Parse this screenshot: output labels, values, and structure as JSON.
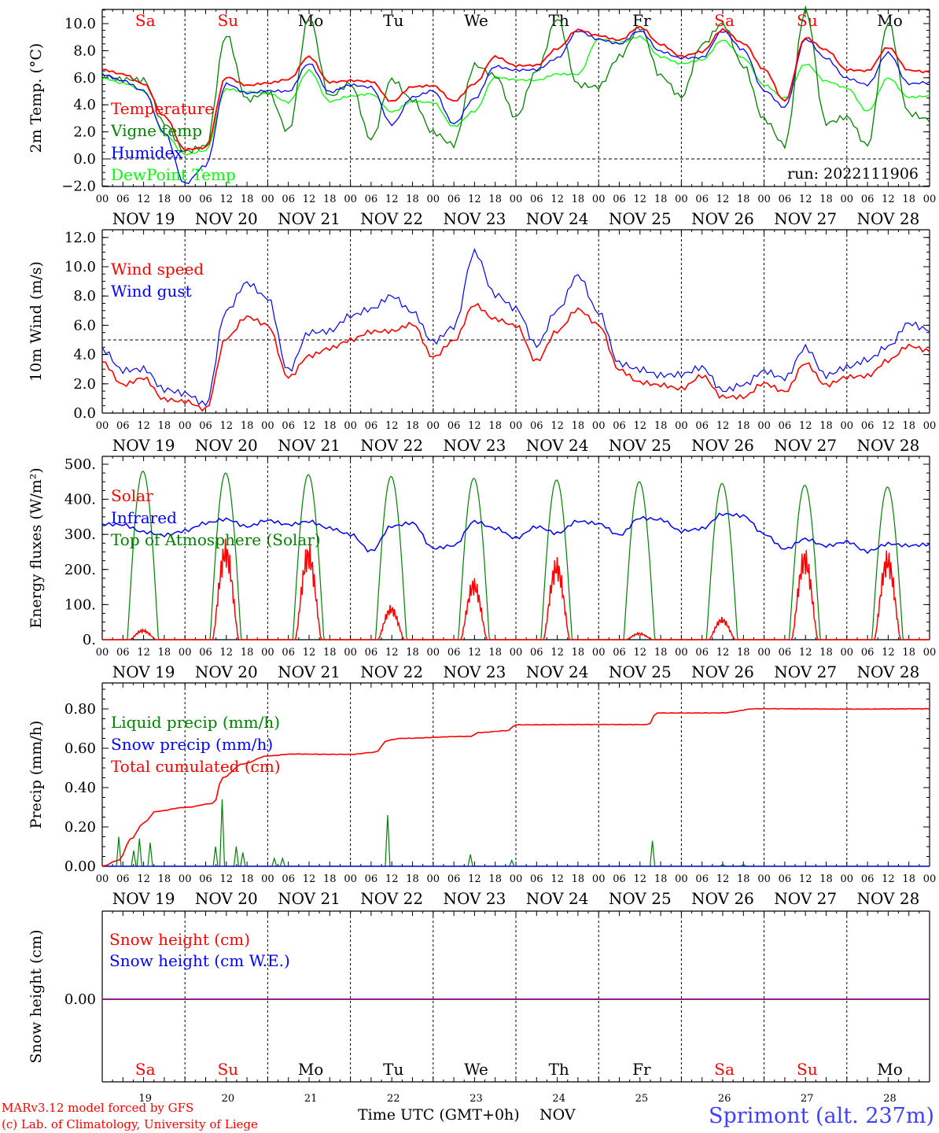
{
  "meta": {
    "run_label": "run: 2022111906",
    "footer_model": "MARv3.12 model forced by GFS",
    "footer_lab": "(c) Lab. of Climatology, University of Liege",
    "footer_axis": "Time UTC (GMT+0h)",
    "footer_month": "NOV",
    "station": "Sprimont (alt. 237m)"
  },
  "colors": {
    "red": "#ff0000",
    "green": "#008000",
    "blue": "#0000ff",
    "light_green": "#00ff00",
    "purple": "#800080",
    "station": "#4040ff"
  },
  "time_axis": {
    "hour_labels": [
      "00",
      "06",
      "12",
      "18"
    ],
    "final_hour_label": "00",
    "date_labels": [
      "NOV 19",
      "NOV 20",
      "NOV 21",
      "NOV 22",
      "NOV 23",
      "NOV 24",
      "NOV 25",
      "NOV 26",
      "NOV 27",
      "NOV 28"
    ],
    "day_names": [
      "Sa",
      "Su",
      "Mo",
      "Tu",
      "We",
      "Th",
      "Fr",
      "Sa",
      "Su",
      "Mo"
    ],
    "day_name_colors": [
      "red",
      "red",
      "black",
      "black",
      "black",
      "black",
      "black",
      "red",
      "red",
      "black"
    ],
    "day_numbers": [
      "19",
      "20",
      "21",
      "22",
      "23",
      "24",
      "25",
      "26",
      "27",
      "28"
    ]
  },
  "chart_data": [
    {
      "type": "line",
      "ylabel": "2m Temp. (°C)",
      "ylim": [
        -2,
        11
      ],
      "yticks": [
        -2,
        0,
        2,
        4,
        6,
        8,
        10
      ],
      "ytick_labels": [
        "−2.0",
        "0.0",
        "2.0",
        "4.0",
        "6.0",
        "8.0",
        "10.0"
      ],
      "ref_line": 0,
      "x_days": [
        0,
        0.25,
        0.5,
        0.75,
        1,
        1.25,
        1.5,
        1.75,
        2,
        2.25,
        2.5,
        2.75,
        3,
        3.25,
        3.5,
        3.75,
        4,
        4.25,
        4.5,
        4.75,
        5,
        5.25,
        5.5,
        5.75,
        6,
        6.25,
        6.5,
        6.75,
        7,
        7.25,
        7.5,
        7.75,
        8,
        8.25,
        8.5,
        8.75,
        9,
        9.25,
        9.5,
        9.75,
        10
      ],
      "series": [
        {
          "name": "Temperature",
          "color": "red",
          "values": [
            6.6,
            6.3,
            5.6,
            3.2,
            0.7,
            0.8,
            6.0,
            5.4,
            5.6,
            5.9,
            7.6,
            5.7,
            5.8,
            5.7,
            4.2,
            5.3,
            5.4,
            4.3,
            5.6,
            7.6,
            6.9,
            6.9,
            8.1,
            9.5,
            9.1,
            8.8,
            9.8,
            8.5,
            7.6,
            7.9,
            9.5,
            8.5,
            6.6,
            4.3,
            9.0,
            8.1,
            6.6,
            6.5,
            8.2,
            6.5,
            6.4
          ]
        },
        {
          "name": "Vigne temp",
          "color": "green",
          "values": [
            6.2,
            5.8,
            5.7,
            2.5,
            0.5,
            1.0,
            9.3,
            4.5,
            5.0,
            2.0,
            10.3,
            4.5,
            5.5,
            1.5,
            6.0,
            4.5,
            2.0,
            1.0,
            6.8,
            6.0,
            3.0,
            6.5,
            10.5,
            5.6,
            5.4,
            7.5,
            9.6,
            6.0,
            4.5,
            8.5,
            10.1,
            7.0,
            3.0,
            1.0,
            10.9,
            2.5,
            3.0,
            1.0,
            10.2,
            3.5,
            3.0
          ]
        },
        {
          "name": "Humidex",
          "color": "blue",
          "values": [
            6.2,
            5.8,
            5.1,
            2.0,
            -1.8,
            -0.5,
            5.5,
            4.8,
            5.0,
            5.0,
            7.1,
            5.0,
            5.5,
            5.3,
            2.5,
            4.5,
            5.0,
            2.6,
            4.5,
            6.9,
            6.6,
            6.6,
            7.4,
            9.4,
            8.8,
            8.5,
            9.5,
            8.0,
            7.5,
            7.5,
            9.4,
            8.0,
            5.0,
            3.8,
            8.9,
            7.5,
            6.0,
            5.5,
            7.8,
            5.5,
            5.6
          ]
        },
        {
          "name": "DewPoint Temp",
          "color": "light_green",
          "values": [
            6.0,
            5.6,
            5.0,
            1.8,
            0.3,
            0.6,
            5.2,
            5.0,
            4.9,
            4.2,
            6.5,
            4.2,
            4.6,
            4.8,
            3.5,
            4.3,
            4.2,
            2.4,
            3.5,
            6.0,
            5.8,
            5.8,
            6.3,
            6.3,
            8.9,
            8.6,
            9.0,
            7.5,
            7.0,
            7.3,
            8.8,
            7.5,
            5.5,
            4.5,
            7.0,
            5.7,
            5.2,
            3.5,
            6.0,
            4.6,
            4.7
          ]
        }
      ]
    },
    {
      "type": "line",
      "ylabel": "10m Wind (m/s)",
      "ylim": [
        0,
        12
      ],
      "yticks": [
        0,
        2,
        4,
        6,
        8,
        10,
        12
      ],
      "ytick_labels": [
        "0.0",
        "2.0",
        "4.0",
        "6.0",
        "8.0",
        "10.0",
        "12.0"
      ],
      "ref_line": 5,
      "x_days": [
        0,
        0.25,
        0.5,
        0.75,
        1,
        1.25,
        1.5,
        1.75,
        2,
        2.25,
        2.5,
        2.75,
        3,
        3.25,
        3.5,
        3.75,
        4,
        4.25,
        4.5,
        4.75,
        5,
        5.25,
        5.5,
        5.75,
        6,
        6.25,
        6.5,
        6.75,
        7,
        7.25,
        7.5,
        7.75,
        8,
        8.25,
        8.5,
        8.75,
        9,
        9.25,
        9.5,
        9.75,
        10
      ],
      "series": [
        {
          "name": "Wind speed",
          "color": "red",
          "values": [
            3.5,
            2.0,
            2.5,
            1.0,
            0.8,
            0.2,
            5.0,
            6.5,
            6.0,
            2.5,
            4.0,
            4.5,
            5.0,
            5.5,
            5.5,
            6.0,
            3.8,
            5.0,
            7.5,
            6.5,
            6.0,
            3.5,
            5.5,
            7.0,
            6.0,
            3.0,
            2.2,
            2.0,
            1.7,
            2.5,
            1.0,
            1.0,
            2.0,
            1.5,
            3.5,
            2.0,
            2.5,
            2.5,
            3.5,
            4.5,
            4.2
          ]
        },
        {
          "name": "Wind gust",
          "color": "blue",
          "values": [
            4.5,
            3.0,
            3.0,
            1.5,
            1.2,
            0.5,
            7.0,
            9.0,
            8.0,
            3.0,
            5.5,
            5.5,
            6.5,
            7.0,
            8.0,
            7.0,
            5.0,
            6.0,
            11.0,
            8.0,
            7.0,
            4.5,
            7.0,
            9.5,
            7.0,
            3.5,
            3.0,
            2.5,
            2.5,
            3.0,
            1.5,
            2.0,
            3.0,
            2.5,
            4.5,
            2.5,
            3.0,
            3.5,
            4.5,
            6.2,
            5.8
          ]
        }
      ]
    },
    {
      "type": "line",
      "ylabel": "Energy fluxes (W/m²)",
      "ylim": [
        0,
        500
      ],
      "yticks": [
        0,
        100,
        200,
        300,
        400,
        500
      ],
      "ytick_labels": [
        "0.",
        "100.",
        "200.",
        "300.",
        "400.",
        "500."
      ],
      "day_shapes": true,
      "series": [
        {
          "name": "Solar",
          "color": "red",
          "daily_peak": [
            30,
            290,
            280,
            100,
            180,
            240,
            20,
            65,
            265,
            260
          ]
        },
        {
          "name": "Infrared",
          "color": "blue",
          "x_days": [
            0,
            0.25,
            0.5,
            0.75,
            1,
            1.25,
            1.5,
            1.75,
            2,
            2.25,
            2.5,
            2.75,
            3,
            3.25,
            3.5,
            3.75,
            4,
            4.25,
            4.5,
            4.75,
            5,
            5.25,
            5.5,
            5.75,
            6,
            6.25,
            6.5,
            6.75,
            7,
            7.25,
            7.5,
            7.75,
            8,
            8.25,
            8.5,
            8.75,
            9,
            9.25,
            9.5,
            9.75,
            10
          ],
          "values": [
            330,
            330,
            310,
            300,
            310,
            330,
            340,
            320,
            340,
            330,
            340,
            320,
            300,
            250,
            320,
            330,
            260,
            270,
            340,
            320,
            290,
            320,
            300,
            335,
            330,
            300,
            350,
            345,
            310,
            315,
            355,
            350,
            300,
            260,
            290,
            270,
            280,
            250,
            270,
            265,
            270
          ]
        },
        {
          "name": "Top of Atmosphere (Solar)",
          "color": "green",
          "daily_peak": [
            480,
            475,
            470,
            465,
            460,
            455,
            450,
            445,
            440,
            435
          ]
        }
      ]
    },
    {
      "type": "line",
      "ylabel": "Precip (mm/h)",
      "ylim": [
        0,
        0.9
      ],
      "yticks": [
        0,
        0.2,
        0.4,
        0.6,
        0.8
      ],
      "ytick_labels": [
        "0.00",
        "0.20",
        "0.40",
        "0.60",
        "0.80"
      ],
      "series": [
        {
          "name": "Liquid precip (mm/h)",
          "color": "green",
          "spikes": [
            [
              0.2,
              0.15
            ],
            [
              0.38,
              0.08
            ],
            [
              0.45,
              0.14
            ],
            [
              0.58,
              0.12
            ],
            [
              1.37,
              0.1
            ],
            [
              1.45,
              0.34
            ],
            [
              1.62,
              0.1
            ],
            [
              1.7,
              0.07
            ],
            [
              2.08,
              0.04
            ],
            [
              2.18,
              0.04
            ],
            [
              3.45,
              0.26
            ],
            [
              4.45,
              0.06
            ],
            [
              4.95,
              0.03
            ],
            [
              6.65,
              0.13
            ],
            [
              7.5,
              0.01
            ],
            [
              7.75,
              0.01
            ]
          ]
        },
        {
          "name": "Snow precip (mm/h)",
          "color": "blue",
          "spikes": []
        },
        {
          "name": "Total cumulated (cm)",
          "color": "red",
          "x_days": [
            0,
            0.2,
            0.35,
            0.5,
            0.65,
            1.0,
            1.35,
            1.45,
            1.7,
            2.0,
            2.3,
            3.0,
            3.3,
            3.45,
            3.6,
            4.45,
            4.55,
            4.9,
            5.0,
            5.5,
            6.6,
            6.7,
            7.5,
            7.9,
            8.5,
            10
          ]
        },
        {
          "values_note": "",
          "color": "none"
        }
      ],
      "cumulated_values": [
        0,
        0.03,
        0.14,
        0.22,
        0.28,
        0.3,
        0.32,
        0.45,
        0.52,
        0.56,
        0.57,
        0.57,
        0.58,
        0.64,
        0.65,
        0.66,
        0.68,
        0.69,
        0.72,
        0.72,
        0.72,
        0.78,
        0.78,
        0.8,
        0.8,
        0.8
      ]
    },
    {
      "type": "line",
      "ylabel": "Snow height (cm)",
      "ylim": [
        -1,
        1
      ],
      "yticks": [
        0
      ],
      "ytick_labels": [
        "0.00"
      ],
      "series": [
        {
          "name": "Snow height (cm)",
          "color": "red",
          "values": [
            0,
            0
          ]
        },
        {
          "name": "Snow height (cm W.E.)",
          "color": "blue",
          "values": [
            0,
            0
          ]
        }
      ]
    }
  ]
}
